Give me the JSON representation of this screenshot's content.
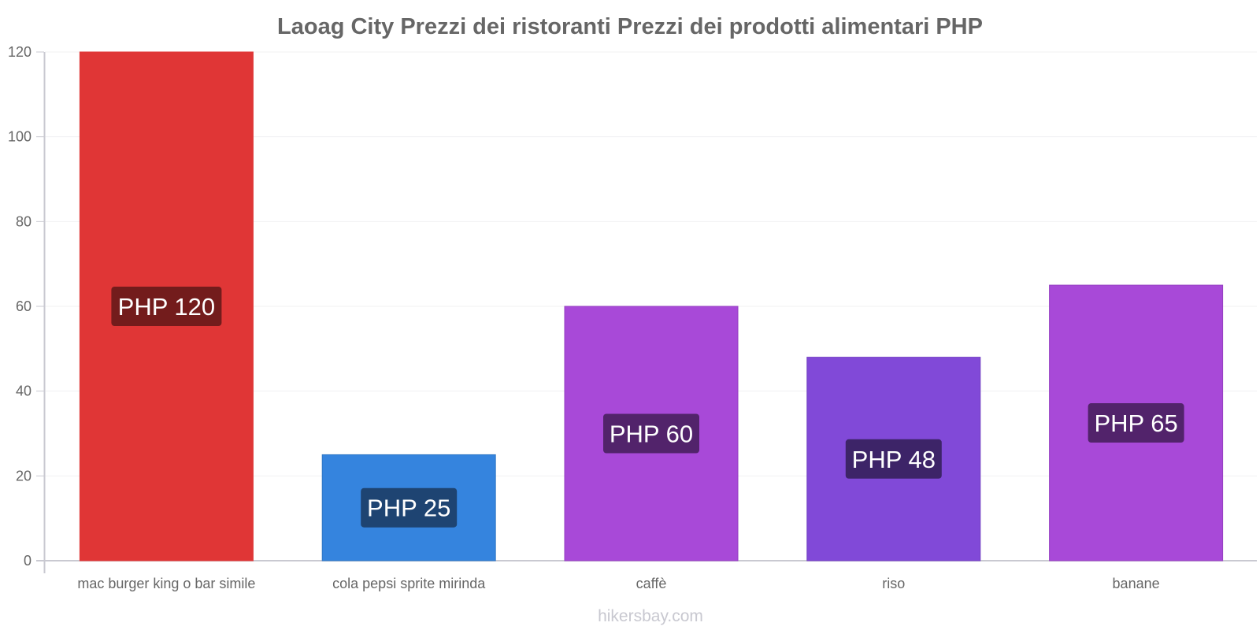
{
  "header": {
    "title": "Laoag City Prezzi dei ristoranti Prezzi dei prodotti alimentari PHP"
  },
  "footer": {
    "watermark": "hikersbay.com"
  },
  "axis": {
    "y_ticks": [
      "0",
      "20",
      "40",
      "60",
      "80",
      "100",
      "120"
    ]
  },
  "bars": [
    {
      "label": "mac burger king o bar simile",
      "value": 120,
      "value_label": "PHP 120",
      "color": "#e03636",
      "label_bg": "#731c1c",
      "stroke": "#e03636"
    },
    {
      "label": "cola pepsi sprite mirinda",
      "value": 25,
      "value_label": "PHP 25",
      "color": "#3584de",
      "label_bg": "#1e4472",
      "stroke": "#2f76c4"
    },
    {
      "label": "caffè",
      "value": 60,
      "value_label": "PHP 60",
      "color": "#a849d8",
      "label_bg": "#52236b",
      "stroke": "#9640c2"
    },
    {
      "label": "riso",
      "value": 48,
      "value_label": "PHP 48",
      "color": "#8149d8",
      "label_bg": "#3d2468",
      "stroke": "#7240c2"
    },
    {
      "label": "banane",
      "value": 65,
      "value_label": "PHP 65",
      "color": "#a849d8",
      "label_bg": "#52236b",
      "stroke": "#9640c2"
    }
  ],
  "chart_data": {
    "type": "bar",
    "title": "Laoag City Prezzi dei ristoranti Prezzi dei prodotti alimentari PHP",
    "categories": [
      "mac burger king o bar simile",
      "cola pepsi sprite mirinda",
      "caffè",
      "riso",
      "banane"
    ],
    "values": [
      120,
      25,
      60,
      48,
      65
    ],
    "data_labels": [
      "PHP 120",
      "PHP 25",
      "PHP 60",
      "PHP 48",
      "PHP 65"
    ],
    "colors": [
      "#e03636",
      "#3584de",
      "#a849d8",
      "#8149d8",
      "#a849d8"
    ],
    "xlabel": "",
    "ylabel": "",
    "ylim": [
      0,
      120
    ],
    "yticks": [
      0,
      20,
      40,
      60,
      80,
      100,
      120
    ],
    "grid": true,
    "legend": null,
    "watermark": "hikersbay.com"
  }
}
